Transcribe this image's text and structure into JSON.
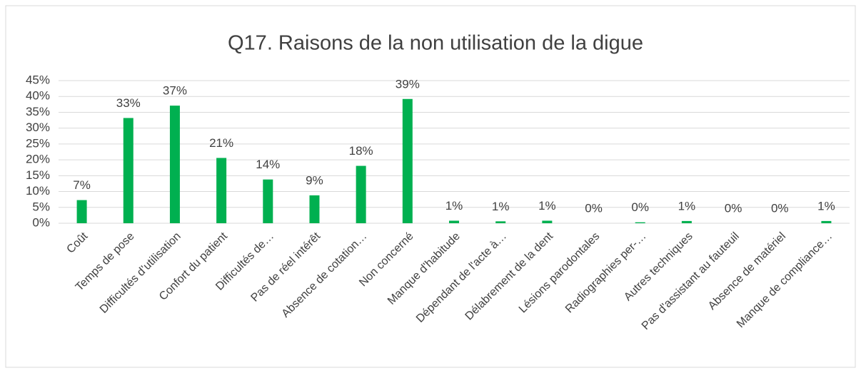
{
  "chart_data": {
    "type": "bar",
    "title": "Q17. Raisons de la non utilisation de la digue",
    "categories": [
      "Coût",
      "Temps de pose",
      "Difficultés d’utilisation",
      "Confort du patient",
      "Difficultés de…",
      "Pas de réel intérêt",
      "Absence de cotation…",
      "Non concerné",
      "Manque d'habitude",
      "Dépendant de l'acte à…",
      "Délabrement de la dent",
      "Lésions parodontales",
      "Radiographies per-…",
      "Autres techniques",
      "Pas d'assistant au fauteuil",
      "Absence de matériel",
      "Manque de compliance…"
    ],
    "values": [
      7.3,
      33.2,
      37.1,
      20.6,
      13.8,
      8.8,
      18.1,
      39.2,
      0.8,
      0.6,
      0.8,
      0,
      0.3,
      0.7,
      0,
      0,
      0.7
    ],
    "value_labels": [
      "7%",
      "33%",
      "37%",
      "21%",
      "14%",
      "9%",
      "18%",
      "39%",
      "1%",
      "1%",
      "1%",
      "0%",
      "0%",
      "1%",
      "0%",
      "0%",
      "1%"
    ],
    "color": "#00b050",
    "ylim": [
      0,
      45
    ],
    "yticks": [
      {
        "value": 0,
        "label": "0%"
      },
      {
        "value": 5,
        "label": "5%"
      },
      {
        "value": 10,
        "label": "10%"
      },
      {
        "value": 15,
        "label": "15%"
      },
      {
        "value": 20,
        "label": "20%"
      },
      {
        "value": 25,
        "label": "25%"
      },
      {
        "value": 30,
        "label": "30%"
      },
      {
        "value": 35,
        "label": "35%"
      },
      {
        "value": 40,
        "label": "40%"
      },
      {
        "value": 45,
        "label": "45%"
      }
    ],
    "grid": true
  }
}
